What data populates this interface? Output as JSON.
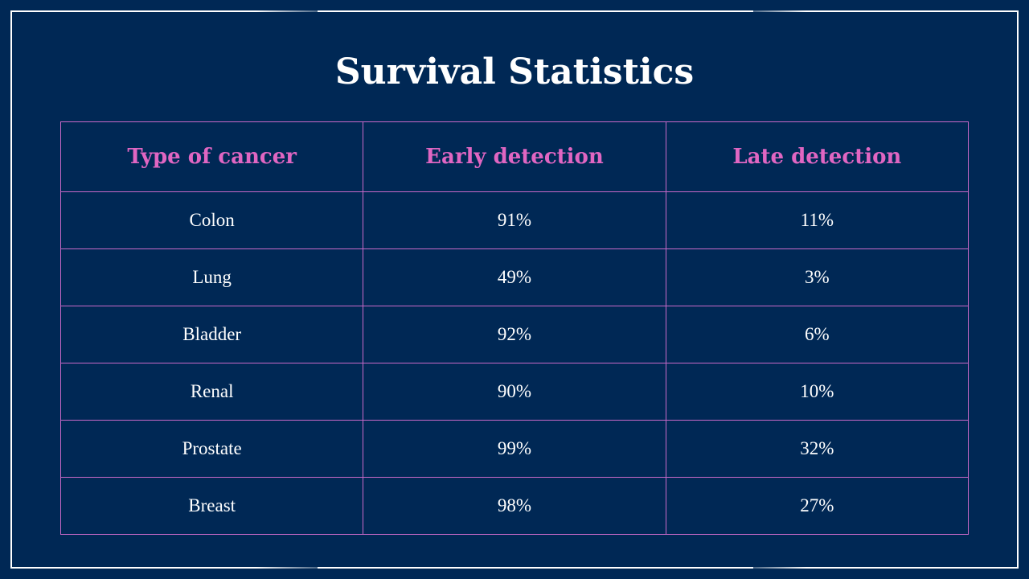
{
  "slide": {
    "title": "Survival Statistics"
  },
  "table": {
    "headers": [
      "Type of cancer",
      "Early detection",
      "Late detection"
    ],
    "rows": [
      [
        "Colon",
        "91%",
        "11%"
      ],
      [
        "Lung",
        "49%",
        "3%"
      ],
      [
        "Bladder",
        "92%",
        "6%"
      ],
      [
        "Renal",
        "90%",
        "10%"
      ],
      [
        "Prostate",
        "99%",
        "32%"
      ],
      [
        "Breast",
        "98%",
        "27%"
      ]
    ]
  },
  "colors": {
    "background": "#002855",
    "header_text": "#e066c2",
    "grid_lines": "#c869c8",
    "body_text": "#ffffff"
  }
}
